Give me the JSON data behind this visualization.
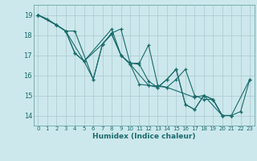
{
  "title": "",
  "xlabel": "Humidex (Indice chaleur)",
  "bg_color": "#cce8ec",
  "grid_color": "#aac8d0",
  "line_color": "#1a6b6b",
  "spine_color": "#5a9a9a",
  "xlim": [
    -0.5,
    23.5
  ],
  "ylim": [
    13.5,
    19.5
  ],
  "yticks": [
    14,
    15,
    16,
    17,
    18,
    19
  ],
  "xticks": [
    0,
    1,
    2,
    3,
    4,
    5,
    6,
    7,
    8,
    9,
    10,
    11,
    12,
    13,
    14,
    15,
    16,
    17,
    18,
    19,
    20,
    21,
    22,
    23
  ],
  "series": [
    [
      [
        0,
        19.0
      ],
      [
        1,
        18.8
      ],
      [
        2,
        18.5
      ],
      [
        3,
        18.2
      ],
      [
        4,
        18.2
      ],
      [
        6,
        15.8
      ],
      [
        7,
        17.55
      ],
      [
        8,
        18.1
      ],
      [
        9,
        18.3
      ],
      [
        10,
        16.6
      ],
      [
        11,
        16.6
      ],
      [
        12,
        17.5
      ],
      [
        13,
        15.5
      ],
      [
        14,
        15.4
      ],
      [
        15,
        15.8
      ],
      [
        16,
        16.3
      ],
      [
        17,
        15.0
      ],
      [
        18,
        14.8
      ],
      [
        19,
        14.8
      ],
      [
        20,
        14.0
      ],
      [
        21,
        14.0
      ],
      [
        22,
        14.2
      ],
      [
        23,
        15.8
      ]
    ],
    [
      [
        0,
        19.0
      ],
      [
        2,
        18.5
      ],
      [
        3,
        18.2
      ],
      [
        4,
        17.1
      ],
      [
        5,
        16.7
      ],
      [
        7,
        17.55
      ],
      [
        8,
        18.05
      ],
      [
        9,
        17.0
      ],
      [
        10,
        16.6
      ],
      [
        11,
        16.55
      ],
      [
        12,
        15.7
      ],
      [
        13,
        15.4
      ],
      [
        14,
        15.8
      ],
      [
        15,
        16.3
      ],
      [
        16,
        14.55
      ],
      [
        17,
        14.3
      ],
      [
        18,
        15.0
      ],
      [
        19,
        14.8
      ],
      [
        20,
        14.0
      ],
      [
        21,
        14.0
      ]
    ],
    [
      [
        0,
        19.0
      ],
      [
        2,
        18.5
      ],
      [
        3,
        18.2
      ],
      [
        4,
        17.1
      ],
      [
        5,
        16.7
      ],
      [
        6,
        15.8
      ],
      [
        7,
        17.55
      ],
      [
        8,
        18.05
      ],
      [
        9,
        17.0
      ],
      [
        10,
        16.55
      ],
      [
        11,
        15.55
      ],
      [
        12,
        15.5
      ],
      [
        13,
        15.4
      ],
      [
        14,
        15.8
      ],
      [
        15,
        16.3
      ],
      [
        16,
        14.55
      ],
      [
        17,
        14.3
      ],
      [
        18,
        15.0
      ],
      [
        19,
        14.8
      ],
      [
        20,
        14.0
      ],
      [
        21,
        14.0
      ]
    ],
    [
      [
        0,
        19.0
      ],
      [
        2,
        18.5
      ],
      [
        3,
        18.2
      ],
      [
        5,
        16.7
      ],
      [
        8,
        18.3
      ],
      [
        9,
        17.0
      ],
      [
        10,
        16.55
      ],
      [
        12,
        15.5
      ],
      [
        14,
        15.4
      ],
      [
        17,
        14.9
      ],
      [
        18,
        15.0
      ],
      [
        20,
        14.0
      ],
      [
        21,
        14.0
      ],
      [
        23,
        15.8
      ]
    ]
  ]
}
